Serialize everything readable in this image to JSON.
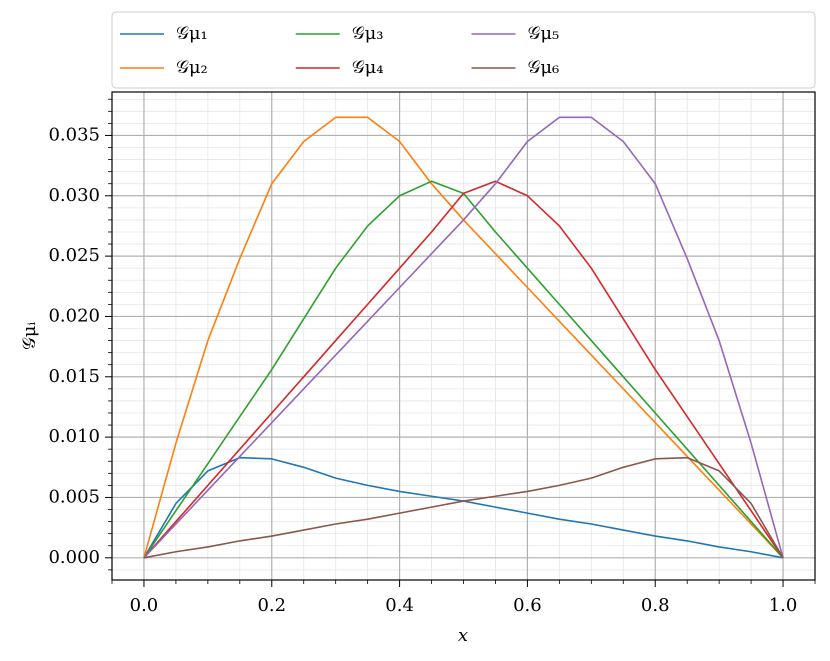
{
  "chart_data": {
    "type": "line",
    "x_label": "x",
    "y_label": "𝒢μᵢ",
    "x": [
      0,
      0.05,
      0.1,
      0.15,
      0.2,
      0.25,
      0.3,
      0.35,
      0.4,
      0.45,
      0.5,
      0.55,
      0.6,
      0.65,
      0.7,
      0.75,
      0.8,
      0.85,
      0.9,
      0.95,
      1
    ],
    "series": [
      {
        "name": "𝒢μ₁",
        "color": "#1f77b4",
        "values": [
          0,
          0.0045,
          0.0072,
          0.0083,
          0.0082,
          0.0075,
          0.0066,
          0.006,
          0.0055,
          0.0051,
          0.0047,
          0.0042,
          0.0037,
          0.0032,
          0.0028,
          0.0023,
          0.0018,
          0.0014,
          0.0009,
          0.0005,
          0
        ]
      },
      {
        "name": "𝒢μ₂",
        "color": "#ff7f0e",
        "values": [
          0,
          0.0095,
          0.018,
          0.0248,
          0.031,
          0.0345,
          0.0365,
          0.0365,
          0.0345,
          0.031,
          0.028,
          0.0252,
          0.0224,
          0.0196,
          0.0168,
          0.014,
          0.0112,
          0.0084,
          0.0056,
          0.0028,
          0
        ]
      },
      {
        "name": "𝒢μ₃",
        "color": "#2ca02c",
        "values": [
          0,
          0.0039,
          0.0078,
          0.0117,
          0.0156,
          0.0198,
          0.024,
          0.0275,
          0.03,
          0.0312,
          0.0302,
          0.027,
          0.024,
          0.021,
          0.018,
          0.015,
          0.012,
          0.009,
          0.006,
          0.003,
          0
        ]
      },
      {
        "name": "𝒢μ₄",
        "color": "#d62728",
        "values": [
          0,
          0.003,
          0.006,
          0.009,
          0.012,
          0.015,
          0.018,
          0.021,
          0.024,
          0.027,
          0.0302,
          0.0312,
          0.03,
          0.0275,
          0.024,
          0.0198,
          0.0156,
          0.0117,
          0.0078,
          0.0039,
          0
        ]
      },
      {
        "name": "𝒢μ₅",
        "color": "#9467bd",
        "values": [
          0,
          0.0028,
          0.0056,
          0.0084,
          0.0112,
          0.014,
          0.0168,
          0.0196,
          0.0224,
          0.0252,
          0.028,
          0.031,
          0.0345,
          0.0365,
          0.0365,
          0.0345,
          0.031,
          0.0248,
          0.018,
          0.0095,
          0
        ]
      },
      {
        "name": "𝒢μ₆",
        "color": "#8c564b",
        "values": [
          0,
          0.0005,
          0.0009,
          0.0014,
          0.0018,
          0.0023,
          0.0028,
          0.0032,
          0.0037,
          0.0042,
          0.0047,
          0.0051,
          0.0055,
          0.006,
          0.0066,
          0.0075,
          0.0082,
          0.0083,
          0.0072,
          0.0045,
          0
        ]
      }
    ],
    "xlim": [
      -0.05,
      1.05
    ],
    "ylim": [
      -0.00184,
      0.0386
    ],
    "xticks": [
      {
        "value": 0,
        "label": "0.0"
      },
      0.2,
      0.4,
      0.6,
      0.8,
      {
        "value": 1,
        "label": "1.0"
      }
    ],
    "yticks": [
      {
        "value": 0,
        "label": "0.000"
      },
      {
        "value": 0.005,
        "label": "0.005"
      },
      {
        "value": 0.01,
        "label": "0.010"
      },
      {
        "value": 0.015,
        "label": "0.015"
      },
      {
        "value": 0.02,
        "label": "0.020"
      },
      {
        "value": 0.025,
        "label": "0.025"
      },
      {
        "value": 0.03,
        "label": "0.030"
      },
      {
        "value": 0.035,
        "label": "0.035"
      }
    ],
    "minor_xticks": [
      -0.05,
      0.05,
      0.1,
      0.15,
      0.25,
      0.3,
      0.35,
      0.45,
      0.5,
      0.55,
      0.65,
      0.7,
      0.75,
      0.85,
      0.9,
      0.95,
      1.05
    ],
    "minor_yticks": [
      -0.001,
      0.001,
      0.002,
      0.003,
      0.004,
      0.006,
      0.007,
      0.008,
      0.009,
      0.011,
      0.012,
      0.013,
      0.014,
      0.016,
      0.017,
      0.018,
      0.019,
      0.021,
      0.022,
      0.023,
      0.024,
      0.026,
      0.027,
      0.028,
      0.029,
      0.031,
      0.032,
      0.033,
      0.034,
      0.036,
      0.037,
      0.038
    ],
    "grid": true,
    "legend": "top",
    "legend_columns": 4
  }
}
